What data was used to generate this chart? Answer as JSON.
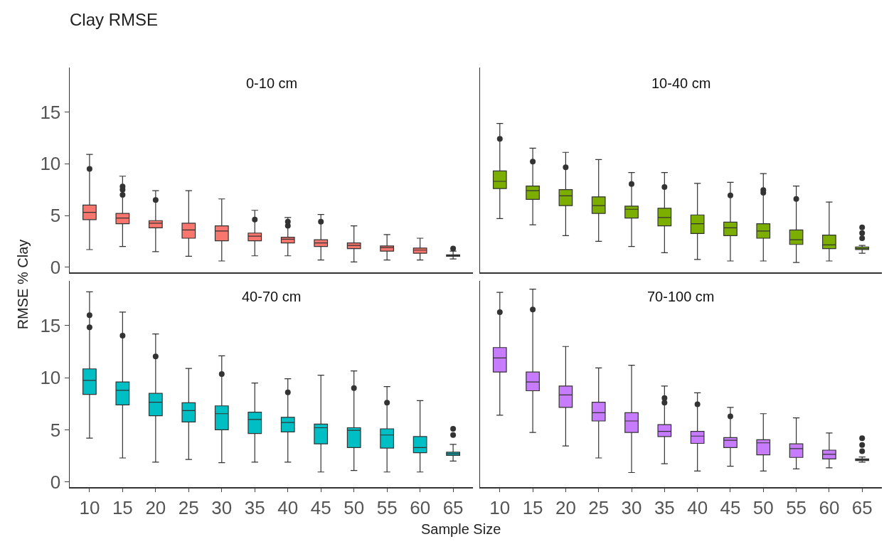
{
  "chart_data": [
    {
      "type": "box",
      "title": "Clay RMSE",
      "ylabel": "RMSE % Clay",
      "annotations": [
        "0-10 cm"
      ],
      "categories": [
        "10",
        "15",
        "20",
        "25",
        "30",
        "35",
        "40",
        "45",
        "50",
        "55",
        "60",
        "65"
      ],
      "ylim": [
        -0.5,
        19.3
      ],
      "yticks": [
        0,
        5,
        10,
        15
      ],
      "tick_labels": "y",
      "series": [
        {
          "color": "#f8766d",
          "boxes": [
            {
              "low": 1.7,
              "q1": 4.6,
              "median": 5.3,
              "q3": 6.0,
              "high": 10.9,
              "outliers": [
                9.5
              ]
            },
            {
              "low": 2.0,
              "q1": 4.2,
              "median": 4.75,
              "q3": 5.2,
              "high": 8.8,
              "outliers": [
                7.0,
                7.5,
                7.8
              ]
            },
            {
              "low": 1.5,
              "q1": 3.8,
              "median": 4.25,
              "q3": 4.5,
              "high": 7.4,
              "outliers": [
                6.5
              ]
            },
            {
              "low": 1.05,
              "q1": 2.8,
              "median": 3.6,
              "q3": 4.25,
              "high": 7.4
            },
            {
              "low": 0.6,
              "q1": 2.55,
              "median": 3.5,
              "q3": 4.0,
              "high": 6.6
            },
            {
              "low": 1.1,
              "q1": 2.55,
              "median": 3.0,
              "q3": 3.3,
              "high": 5.5,
              "outliers": [
                4.6
              ]
            },
            {
              "low": 1.1,
              "q1": 2.35,
              "median": 2.7,
              "q3": 2.9,
              "high": 4.8,
              "outliers": [
                4.0,
                4.4
              ]
            },
            {
              "low": 0.7,
              "q1": 2.0,
              "median": 2.35,
              "q3": 2.65,
              "high": 5.1,
              "outliers": [
                4.4
              ]
            },
            {
              "low": 0.5,
              "q1": 1.8,
              "median": 2.1,
              "q3": 2.35,
              "high": 4.0
            },
            {
              "low": 0.7,
              "q1": 1.55,
              "median": 1.9,
              "q3": 2.05,
              "high": 3.15
            },
            {
              "low": 0.7,
              "q1": 1.35,
              "median": 1.65,
              "q3": 1.85,
              "high": 2.8
            },
            {
              "low": 0.8,
              "q1": 1.05,
              "median": 1.15,
              "q3": 1.2,
              "high": 1.55,
              "outliers": [
                1.8
              ]
            }
          ]
        }
      ]
    },
    {
      "type": "box",
      "annotations": [
        "10-40 cm"
      ],
      "categories": [
        "10",
        "15",
        "20",
        "25",
        "30",
        "35",
        "40",
        "45",
        "50",
        "55",
        "60",
        "65"
      ],
      "ylim": [
        -0.5,
        19.3
      ],
      "tick_labels": false,
      "series": [
        {
          "color": "#7cae00",
          "boxes": [
            {
              "low": 4.7,
              "q1": 7.6,
              "median": 8.3,
              "q3": 9.3,
              "high": 13.9,
              "outliers": [
                12.4
              ]
            },
            {
              "low": 4.1,
              "q1": 6.55,
              "median": 7.4,
              "q3": 7.85,
              "high": 11.5,
              "outliers": [
                10.2
              ]
            },
            {
              "low": 3.05,
              "q1": 5.95,
              "median": 6.9,
              "q3": 7.5,
              "high": 11.1,
              "outliers": [
                9.65
              ]
            },
            {
              "low": 2.5,
              "q1": 5.2,
              "median": 5.95,
              "q3": 6.8,
              "high": 10.4
            },
            {
              "low": 2.0,
              "q1": 4.75,
              "median": 5.6,
              "q3": 5.9,
              "high": 9.15,
              "outliers": [
                8.05
              ]
            },
            {
              "low": 1.4,
              "q1": 4.0,
              "median": 4.8,
              "q3": 5.7,
              "high": 9.15,
              "outliers": [
                7.75
              ]
            },
            {
              "low": 0.75,
              "q1": 3.25,
              "median": 4.2,
              "q3": 5.05,
              "high": 8.1
            },
            {
              "low": 0.6,
              "q1": 3.05,
              "median": 3.8,
              "q3": 4.35,
              "high": 8.2,
              "outliers": [
                6.95
              ]
            },
            {
              "low": 0.6,
              "q1": 2.8,
              "median": 3.5,
              "q3": 4.2,
              "high": 9.05,
              "outliers": [
                7.2,
                7.45
              ]
            },
            {
              "low": 0.45,
              "q1": 2.2,
              "median": 2.65,
              "q3": 3.6,
              "high": 7.85,
              "outliers": [
                6.6
              ]
            },
            {
              "low": 0.6,
              "q1": 1.8,
              "median": 2.15,
              "q3": 3.1,
              "high": 6.3
            },
            {
              "low": 1.35,
              "q1": 1.7,
              "median": 1.8,
              "q3": 1.95,
              "high": 2.1,
              "outliers": [
                2.8,
                3.3,
                3.85
              ]
            }
          ]
        }
      ]
    },
    {
      "type": "box",
      "xlabel": "Sample Size",
      "annotations": [
        "40-70 cm"
      ],
      "categories": [
        "10",
        "15",
        "20",
        "25",
        "30",
        "35",
        "40",
        "45",
        "50",
        "55",
        "60",
        "65"
      ],
      "ylim": [
        -0.5,
        19.3
      ],
      "yticks": [
        0,
        5,
        10,
        15
      ],
      "series": [
        {
          "color": "#00bfc4",
          "boxes": [
            {
              "low": 4.2,
              "q1": 8.4,
              "median": 9.75,
              "q3": 10.85,
              "high": 18.25,
              "outliers": [
                14.85,
                16.0
              ]
            },
            {
              "low": 2.3,
              "q1": 7.4,
              "median": 8.8,
              "q3": 9.6,
              "high": 16.3,
              "outliers": [
                14.05
              ]
            },
            {
              "low": 1.9,
              "q1": 6.35,
              "median": 7.65,
              "q3": 8.5,
              "high": 14.2,
              "outliers": [
                12.05
              ]
            },
            {
              "low": 2.15,
              "q1": 5.75,
              "median": 6.85,
              "q3": 7.6,
              "high": 10.9
            },
            {
              "low": 1.85,
              "q1": 5.0,
              "median": 6.55,
              "q3": 7.3,
              "high": 12.1,
              "outliers": [
                10.35
              ]
            },
            {
              "low": 1.9,
              "q1": 4.65,
              "median": 6.0,
              "q3": 6.7,
              "high": 9.5
            },
            {
              "low": 1.9,
              "q1": 4.8,
              "median": 5.7,
              "q3": 6.2,
              "high": 9.9,
              "outliers": [
                8.6
              ]
            },
            {
              "low": 0.95,
              "q1": 3.65,
              "median": 5.2,
              "q3": 5.55,
              "high": 10.25
            },
            {
              "low": 1.1,
              "q1": 3.3,
              "median": 4.95,
              "q3": 5.2,
              "high": 10.65,
              "outliers": [
                9.0
              ]
            },
            {
              "low": 0.95,
              "q1": 3.25,
              "median": 4.5,
              "q3": 5.1,
              "high": 9.15,
              "outliers": [
                7.6
              ]
            },
            {
              "low": 0.95,
              "q1": 2.8,
              "median": 3.3,
              "q3": 4.35,
              "high": 7.8
            },
            {
              "low": 2.0,
              "q1": 2.55,
              "median": 2.7,
              "q3": 2.85,
              "high": 3.6,
              "outliers": [
                4.5,
                5.1
              ]
            }
          ]
        }
      ]
    },
    {
      "type": "box",
      "annotations": [
        "70-100 cm"
      ],
      "categories": [
        "10",
        "15",
        "20",
        "25",
        "30",
        "35",
        "40",
        "45",
        "50",
        "55",
        "60",
        "65"
      ],
      "ylim": [
        -0.5,
        19.3
      ],
      "tick_labels": "x",
      "series": [
        {
          "color": "#c77cff",
          "boxes": [
            {
              "low": 6.4,
              "q1": 10.55,
              "median": 11.9,
              "q3": 12.9,
              "high": 18.2,
              "outliers": [
                16.3
              ]
            },
            {
              "low": 4.75,
              "q1": 8.75,
              "median": 9.6,
              "q3": 10.55,
              "high": 18.5,
              "outliers": [
                16.55
              ]
            },
            {
              "low": 3.45,
              "q1": 7.15,
              "median": 8.35,
              "q3": 9.2,
              "high": 13.0
            },
            {
              "low": 2.3,
              "q1": 5.85,
              "median": 6.65,
              "q3": 7.65,
              "high": 10.95
            },
            {
              "low": 0.9,
              "q1": 4.75,
              "median": 5.85,
              "q3": 6.65,
              "high": 11.2
            },
            {
              "low": 1.75,
              "q1": 4.35,
              "median": 4.85,
              "q3": 5.5,
              "high": 9.2,
              "outliers": [
                7.6,
                8.05
              ]
            },
            {
              "low": 1.05,
              "q1": 3.7,
              "median": 4.4,
              "q3": 4.85,
              "high": 8.55,
              "outliers": [
                7.45
              ]
            },
            {
              "low": 1.5,
              "q1": 3.3,
              "median": 4.0,
              "q3": 4.25,
              "high": 7.15,
              "outliers": [
                6.3
              ]
            },
            {
              "low": 1.05,
              "q1": 2.6,
              "median": 3.75,
              "q3": 4.05,
              "high": 6.55
            },
            {
              "low": 1.25,
              "q1": 2.35,
              "median": 3.2,
              "q3": 3.65,
              "high": 6.15
            },
            {
              "low": 1.35,
              "q1": 2.2,
              "median": 2.65,
              "q3": 3.05,
              "high": 4.7
            },
            {
              "low": 1.9,
              "q1": 2.05,
              "median": 2.15,
              "q3": 2.2,
              "high": 2.4,
              "outliers": [
                2.95,
                3.55,
                4.2
              ]
            }
          ]
        }
      ]
    }
  ]
}
